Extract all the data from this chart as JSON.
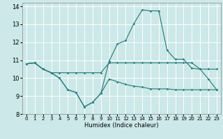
{
  "title": "",
  "xlabel": "Humidex (Indice chaleur)",
  "bg_color": "#cce8e8",
  "grid_color": "#ffffff",
  "line_color": "#2e7d7d",
  "xlim": [
    -0.5,
    23.5
  ],
  "ylim": [
    8,
    14.2
  ],
  "yticks": [
    8,
    9,
    10,
    11,
    12,
    13,
    14
  ],
  "xticks": [
    0,
    1,
    2,
    3,
    4,
    5,
    6,
    7,
    8,
    9,
    10,
    11,
    12,
    13,
    14,
    15,
    16,
    17,
    18,
    19,
    20,
    21,
    22,
    23
  ],
  "curve_peak_x": [
    0,
    1,
    2,
    3,
    4,
    5,
    6,
    7,
    8,
    9,
    10,
    11,
    12,
    13,
    14,
    15,
    16,
    17,
    18,
    19,
    20,
    21,
    22,
    23
  ],
  "curve_peak_y": [
    10.8,
    10.85,
    10.5,
    10.3,
    10.0,
    9.35,
    9.2,
    8.4,
    8.65,
    9.15,
    10.95,
    11.9,
    12.1,
    13.05,
    13.8,
    13.75,
    13.75,
    11.55,
    11.05,
    11.05,
    10.55,
    10.5,
    9.95,
    9.35
  ],
  "curve_flat_x": [
    0,
    1,
    2,
    3,
    4,
    5,
    6,
    7,
    8,
    9,
    10,
    11,
    12,
    13,
    14,
    15,
    16,
    17,
    18,
    19,
    20,
    21,
    22,
    23
  ],
  "curve_flat_y": [
    10.8,
    10.85,
    10.5,
    10.3,
    10.3,
    10.3,
    10.3,
    10.3,
    10.3,
    10.3,
    10.85,
    10.85,
    10.85,
    10.85,
    10.85,
    10.85,
    10.85,
    10.85,
    10.85,
    10.85,
    10.85,
    10.5,
    10.5,
    10.5
  ],
  "curve_low_x": [
    0,
    1,
    2,
    3,
    4,
    5,
    6,
    7,
    8,
    9,
    10,
    11,
    12,
    13,
    14,
    15,
    16,
    17,
    18,
    19,
    20,
    21,
    22,
    23
  ],
  "curve_low_y": [
    10.8,
    10.85,
    10.5,
    10.3,
    10.0,
    9.35,
    9.2,
    8.4,
    8.65,
    9.15,
    9.95,
    9.8,
    9.65,
    9.55,
    9.5,
    9.4,
    9.4,
    9.4,
    9.35,
    9.35,
    9.35,
    9.35,
    9.35,
    9.35
  ]
}
